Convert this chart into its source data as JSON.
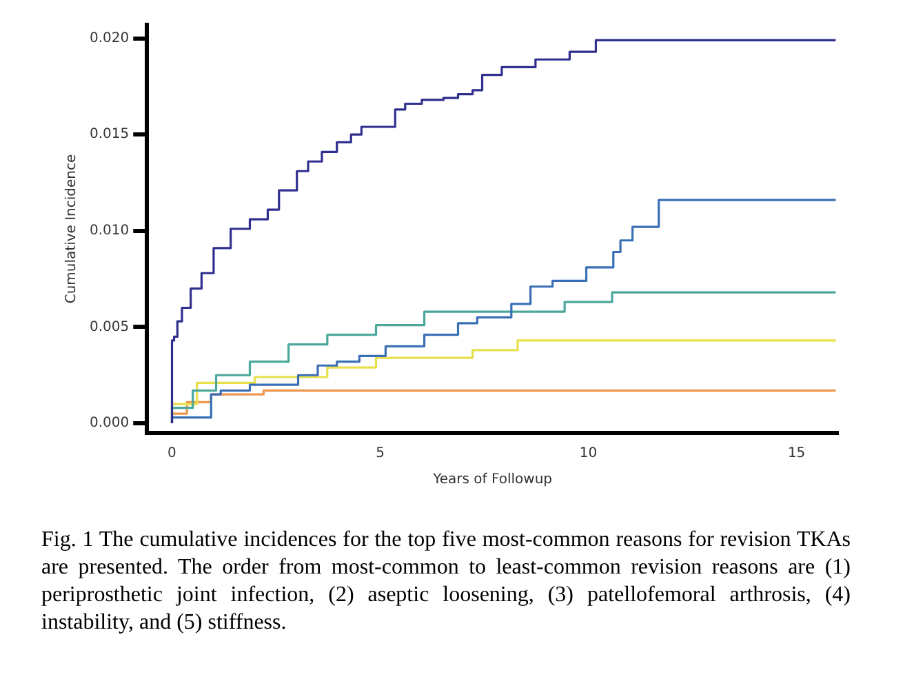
{
  "chart_data": {
    "type": "step",
    "xlabel": "Years of Followup",
    "ylabel": "Cumulative Incidence",
    "xlim": [
      -0.6,
      16
    ],
    "ylim": [
      -0.0005,
      0.0207
    ],
    "xticks": [
      0,
      5,
      10,
      15
    ],
    "yticks": [
      {
        "value": 0,
        "label": "0.000"
      },
      {
        "value": 0.005,
        "label": "0.005"
      },
      {
        "value": 0.01,
        "label": "0.010"
      },
      {
        "value": 0.015,
        "label": "0.015"
      },
      {
        "value": 0.02,
        "label": "0.020"
      }
    ],
    "grid": false,
    "legend": false,
    "marker": "none",
    "line_style": "solid",
    "annotations": [
      "Fig. 1 The cumulative incidences for the top five most-common reasons for revision TKAs are presented. The order from most-common to least-common revision reasons are (1) periprosthetic joint infection, (2) aseptic loosening, (3) patellofemoral arthrosis, (4) instability, and (5) stiffness."
    ],
    "series": [
      {
        "color": "#2f2f8f",
        "x": [
          0,
          0.05,
          0.13,
          0.24,
          0.45,
          0.71,
          1.0,
          1.41,
          1.87,
          2.3,
          2.57,
          3.0,
          3.27,
          3.6,
          3.96,
          4.3,
          4.55,
          5.36,
          5.6,
          6.0,
          6.52,
          6.87,
          7.22,
          7.45,
          7.92,
          8.73,
          9.55,
          10.18,
          11.23,
          15.94
        ],
        "values": [
          0,
          0.0043,
          0.0045,
          0.0053,
          0.006,
          0.007,
          0.0078,
          0.0091,
          0.0101,
          0.0106,
          0.0111,
          0.0121,
          0.0131,
          0.0136,
          0.0141,
          0.0146,
          0.015,
          0.0154,
          0.0163,
          0.0166,
          0.0168,
          0.0169,
          0.0171,
          0.0173,
          0.0181,
          0.0185,
          0.0189,
          0.0193,
          0.0199,
          0.0199
        ]
      },
      {
        "color": "#3a6fb5",
        "x": [
          0,
          0.94,
          1.17,
          1.87,
          3.03,
          3.5,
          3.96,
          4.5,
          5.13,
          6.06,
          6.87,
          7.33,
          8.15,
          8.61,
          9.14,
          9.95,
          10.6,
          10.77,
          11.06,
          11.69,
          13.93,
          15.94
        ],
        "values": [
          0,
          0.0003,
          0.0015,
          0.0017,
          0.002,
          0.0025,
          0.003,
          0.0032,
          0.0035,
          0.004,
          0.0046,
          0.0052,
          0.0055,
          0.0062,
          0.0071,
          0.0074,
          0.0081,
          0.0089,
          0.0095,
          0.0102,
          0.0116,
          0.0116
        ]
      },
      {
        "color": "#4aa89a",
        "x": [
          0,
          0.5,
          1.06,
          1.87,
          2.8,
          3.73,
          4.9,
          6.06,
          9.43,
          10.57,
          11.4,
          15.94
        ],
        "values": [
          0,
          0.0008,
          0.0017,
          0.0025,
          0.0032,
          0.0041,
          0.0046,
          0.0051,
          0.0058,
          0.0063,
          0.0068,
          0.0068
        ]
      },
      {
        "color": "#e8e04a",
        "x": [
          0,
          0.6,
          1.99,
          3.73,
          4.9,
          7.22,
          8.3,
          11.52,
          15.94
        ],
        "values": [
          0,
          0.001,
          0.0021,
          0.0024,
          0.0029,
          0.0034,
          0.0038,
          0.0043,
          0.0043
        ]
      },
      {
        "color": "#f0964a",
        "x": [
          0,
          0.36,
          0.94,
          2.2,
          3.38,
          15.94
        ],
        "values": [
          0,
          0.0005,
          0.0011,
          0.0015,
          0.0017,
          0.0017
        ]
      }
    ]
  }
}
